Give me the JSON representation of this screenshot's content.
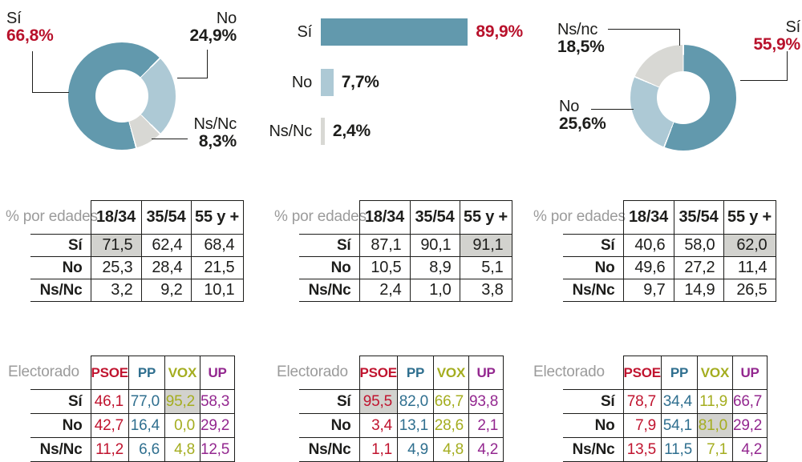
{
  "colors": {
    "teal": "#6299ad",
    "lightblue": "#adc9d5",
    "lightgray": "#d8d8d4",
    "red": "#b8112b",
    "dark": "#1d1d1b",
    "graylabel": "#9b9b9b",
    "border": "#1d1d1b",
    "highlight": "#d2d2ce",
    "psoe": "#c0142f",
    "pp": "#2f6f8f",
    "vox": "#a4ad1f",
    "up": "#93278f"
  },
  "chart_data": [
    {
      "type": "pie",
      "subtype": "donut",
      "labels": [
        "Sí",
        "No",
        "Ns/Nc"
      ],
      "values": [
        66.8,
        24.9,
        8.3
      ],
      "display": [
        "66,8%",
        "24,9%",
        "8,3%"
      ],
      "colors": [
        "#6299ad",
        "#adc9d5",
        "#d8d8d4"
      ],
      "start_angle": 164.5,
      "legend_position": "callout-labels"
    },
    {
      "type": "bar",
      "orientation": "horizontal",
      "categories": [
        "Sí",
        "No",
        "Ns/Nc"
      ],
      "values": [
        89.9,
        7.7,
        2.4
      ],
      "display": [
        "89,9%",
        "7,7%",
        "2,4%"
      ],
      "colors": [
        "#6299ad",
        "#adc9d5",
        "#d8d8d4"
      ],
      "xlim": [
        0,
        100
      ],
      "grid": false
    },
    {
      "type": "pie",
      "subtype": "donut",
      "labels": [
        "Sí",
        "No",
        "Ns/nc"
      ],
      "values": [
        55.9,
        25.6,
        18.5
      ],
      "display": [
        "55,9%",
        "25,6%",
        "18,5%"
      ],
      "colors": [
        "#6299ad",
        "#adc9d5",
        "#d8d8d4"
      ],
      "start_angle": 0,
      "legend_position": "callout-labels"
    },
    {
      "type": "table",
      "title": "% por edades",
      "columns": [
        "18/34",
        "35/54",
        "55 y +"
      ],
      "rows": [
        {
          "label": "Sí",
          "values": [
            "71,5",
            "62,4",
            "68,4"
          ],
          "highlight_col": 0
        },
        {
          "label": "No",
          "values": [
            "25,3",
            "28,4",
            "21,5"
          ]
        },
        {
          "label": "Ns/Nc",
          "values": [
            "3,2",
            "9,2",
            "10,1"
          ]
        }
      ]
    },
    {
      "type": "table",
      "title": "% por edades",
      "columns": [
        "18/34",
        "35/54",
        "55 y +"
      ],
      "rows": [
        {
          "label": "Sí",
          "values": [
            "87,1",
            "90,1",
            "91,1"
          ],
          "highlight_col": 2
        },
        {
          "label": "No",
          "values": [
            "10,5",
            "8,9",
            "5,1"
          ]
        },
        {
          "label": "Ns/Nc",
          "values": [
            "2,4",
            "1,0",
            "3,8"
          ]
        }
      ]
    },
    {
      "type": "table",
      "title": "% por edades",
      "columns": [
        "18/34",
        "35/54",
        "55 y +"
      ],
      "rows": [
        {
          "label": "Sí",
          "values": [
            "40,6",
            "58,0",
            "62,0"
          ],
          "highlight_col": 2
        },
        {
          "label": "No",
          "values": [
            "49,6",
            "27,2",
            "11,4"
          ]
        },
        {
          "label": "Ns/Nc",
          "values": [
            "9,7",
            "14,9",
            "26,5"
          ]
        }
      ]
    },
    {
      "type": "table",
      "title": "Electorado",
      "columns": [
        "PSOE",
        "PP",
        "VOX",
        "UP"
      ],
      "rows": [
        {
          "label": "Sí",
          "values": [
            "46,1",
            "77,0",
            "95,2",
            "58,3"
          ],
          "highlight_col": 2
        },
        {
          "label": "No",
          "values": [
            "42,7",
            "16,4",
            "0,0",
            "29,2"
          ]
        },
        {
          "label": "Ns/Nc",
          "values": [
            "11,2",
            "6,6",
            "4,8",
            "12,5"
          ]
        }
      ]
    },
    {
      "type": "table",
      "title": "Electorado",
      "columns": [
        "PSOE",
        "PP",
        "VOX",
        "UP"
      ],
      "rows": [
        {
          "label": "Sí",
          "values": [
            "95,5",
            "82,0",
            "66,7",
            "93,8"
          ],
          "highlight_col": 0
        },
        {
          "label": "No",
          "values": [
            "3,4",
            "13,1",
            "28,6",
            "2,1"
          ]
        },
        {
          "label": "Ns/Nc",
          "values": [
            "1,1",
            "4,9",
            "4,8",
            "4,2"
          ]
        }
      ]
    },
    {
      "type": "table",
      "title": "Electorado",
      "columns": [
        "PSOE",
        "PP",
        "VOX",
        "UP"
      ],
      "rows": [
        {
          "label": "Sí",
          "values": [
            "78,7",
            "34,4",
            "11,9",
            "66,7"
          ]
        },
        {
          "label": "No",
          "values": [
            "7,9",
            "54,1",
            "81,0",
            "29,2"
          ],
          "highlight_col": 2
        },
        {
          "label": "Ns/Nc",
          "values": [
            "13,5",
            "11,5",
            "7,1",
            "4,2"
          ]
        }
      ]
    }
  ]
}
